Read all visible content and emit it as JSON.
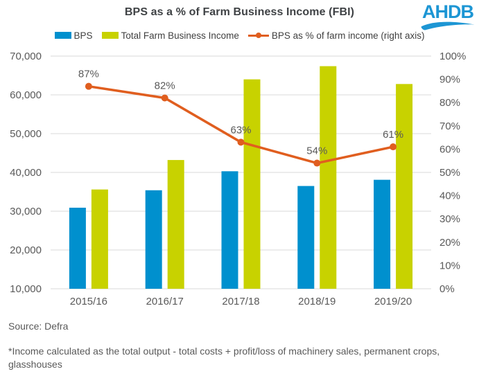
{
  "header": {
    "title": "BPS as a % of Farm Business Income (FBI)"
  },
  "logo": {
    "text": "AHDB",
    "color": "#1d96d4"
  },
  "legend": [
    {
      "label": "BPS",
      "color": "#0090ce",
      "marker": "square"
    },
    {
      "label": "Total Farm Business Income",
      "color": "#c8d200",
      "marker": "square"
    },
    {
      "label": "BPS as % of farm income (right axis)",
      "color": "#e05e1f",
      "marker": "line"
    }
  ],
  "chart_data": {
    "type": "combo",
    "title": "BPS as a % of Farm Business Income (FBI)",
    "categories": [
      "2015/16",
      "2016/17",
      "2017/18",
      "2018/19",
      "2019/20"
    ],
    "series": [
      {
        "name": "BPS",
        "type": "bar",
        "axis": "left",
        "color": "#0090ce",
        "values": [
          30900,
          35400,
          40300,
          36500,
          38100
        ]
      },
      {
        "name": "Total Farm Business Income",
        "type": "bar",
        "axis": "left",
        "color": "#c8d200",
        "values": [
          35600,
          43200,
          64000,
          67400,
          62800
        ]
      },
      {
        "name": "BPS as % of farm income (right axis)",
        "type": "line",
        "axis": "right",
        "color": "#e05e1f",
        "values": [
          87,
          82,
          63,
          54,
          61
        ],
        "labels": [
          "87%",
          "82%",
          "63%",
          "54%",
          "61%"
        ]
      }
    ],
    "left_axis": {
      "min": 10000,
      "max": 70000,
      "step": 10000,
      "format": "thousands"
    },
    "right_axis": {
      "min": 0,
      "max": 100,
      "step": 10,
      "format": "percent"
    },
    "grid": true,
    "legend_position": "top",
    "grid_color": "#d9d9d9",
    "tick_color": "#595959",
    "label_color": "#595959"
  },
  "footer": {
    "source": "Source: Defra",
    "note": "*Income calculated as the total output - total costs + profit/loss of machinery sales, permanent crops, glasshouses"
  }
}
